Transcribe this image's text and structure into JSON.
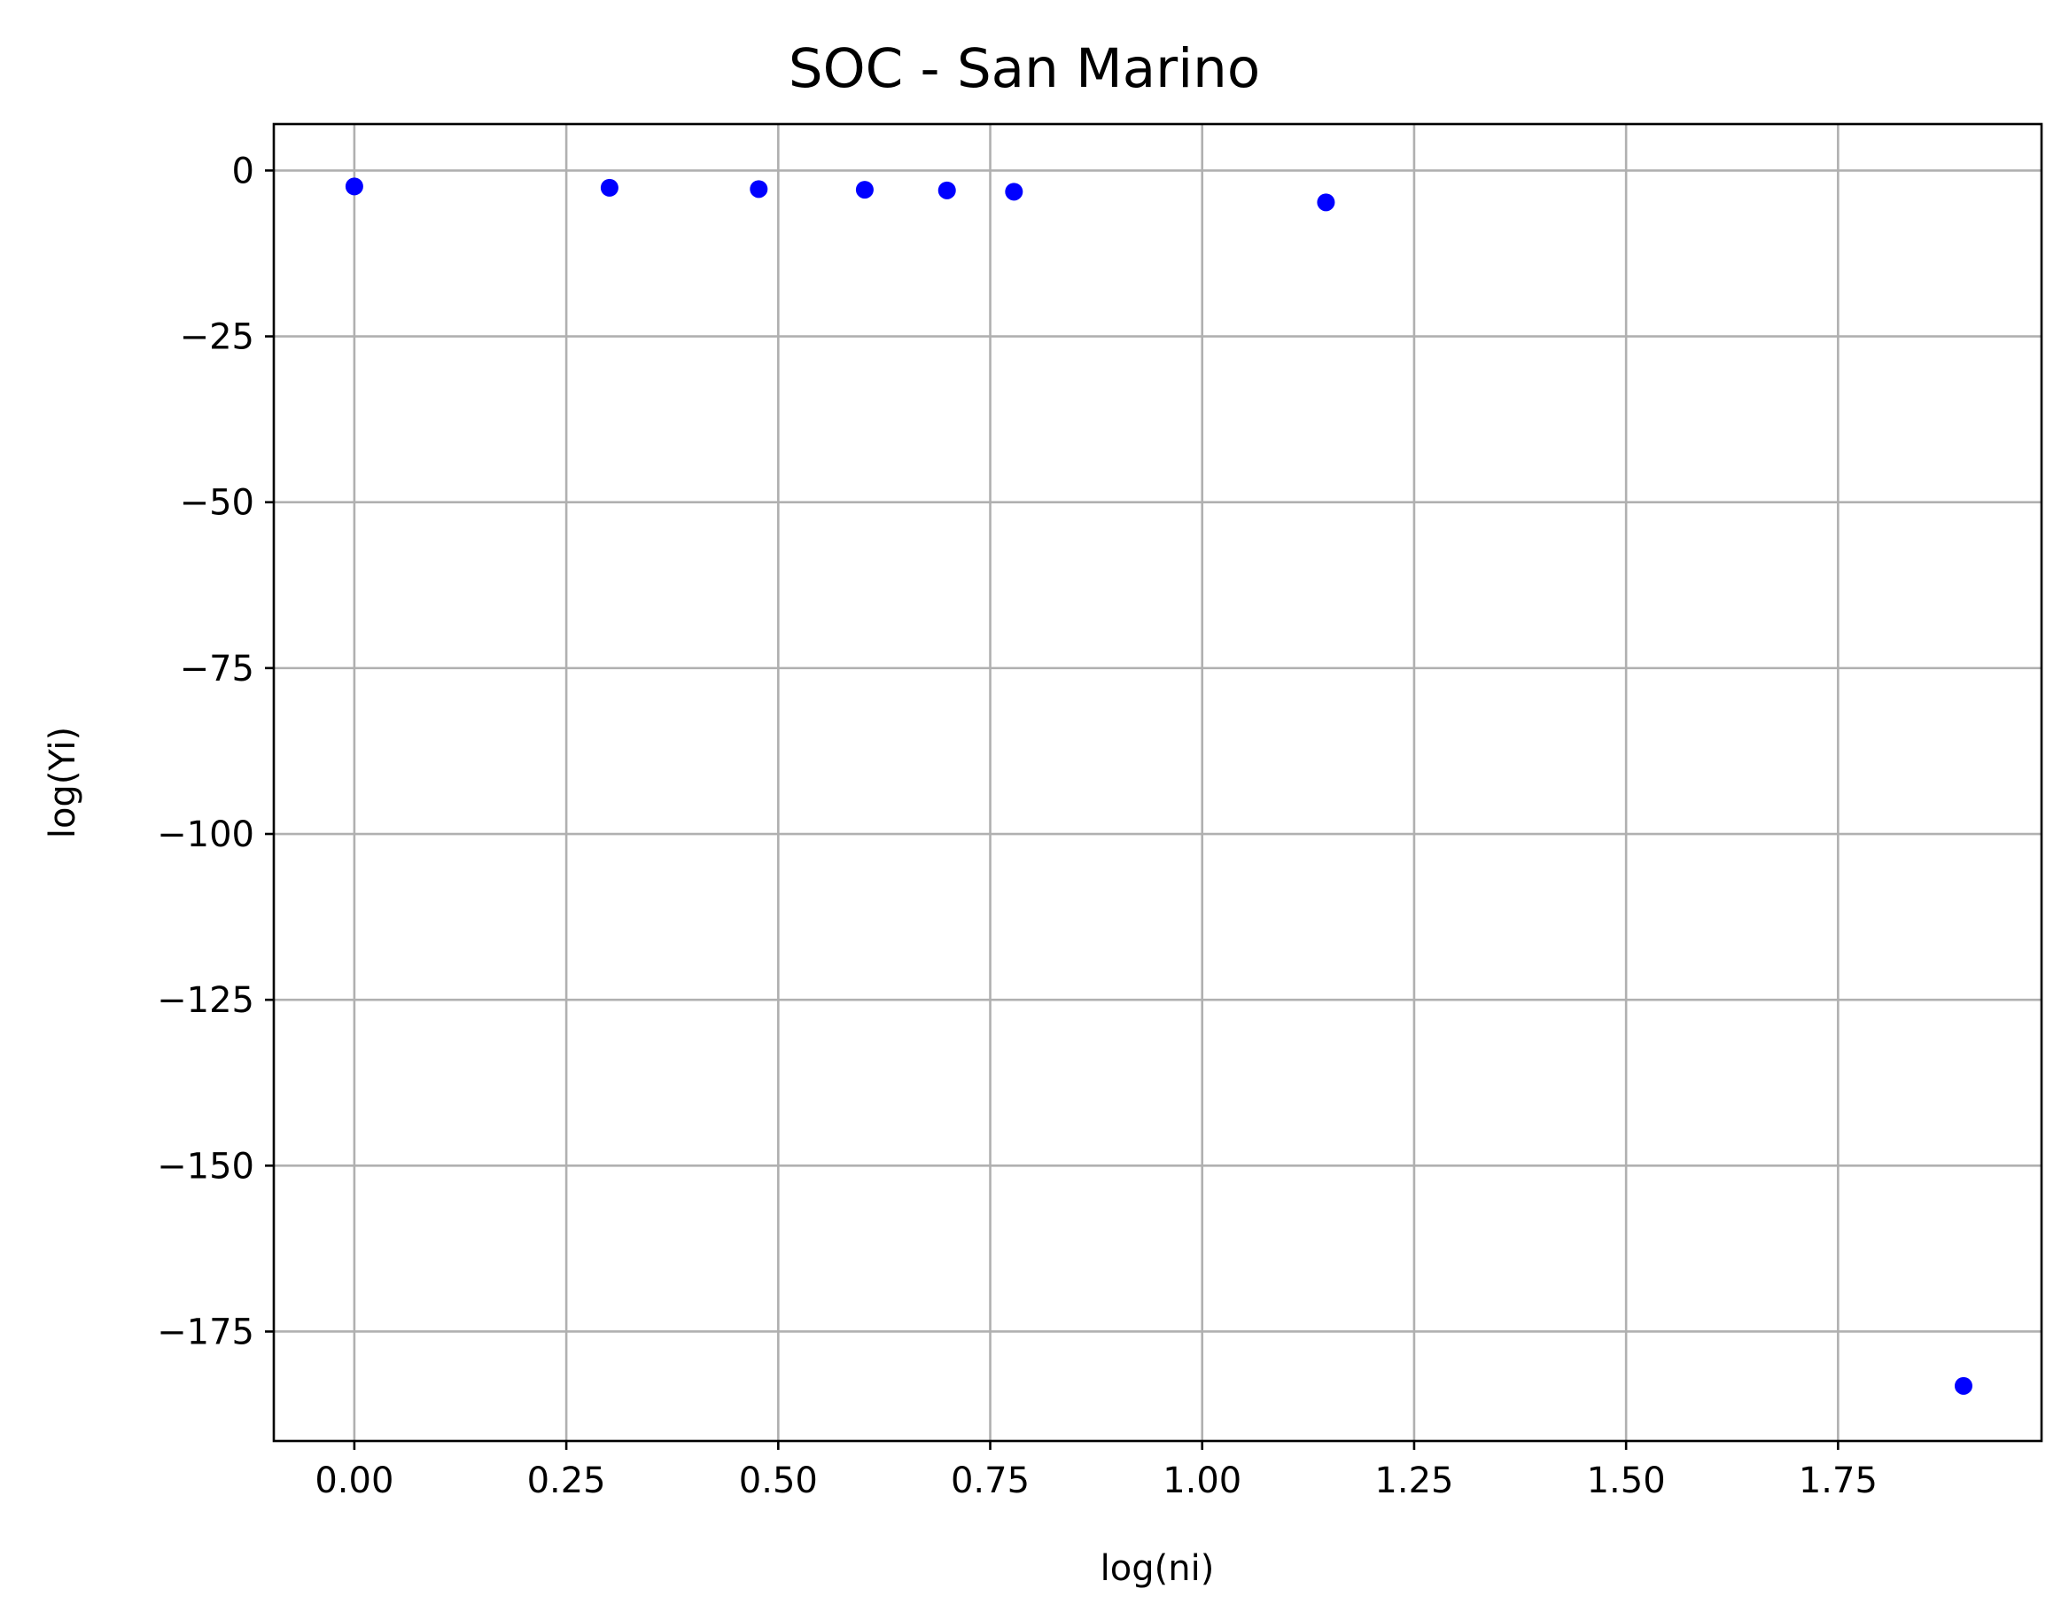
{
  "chart_data": {
    "type": "scatter",
    "title": "SOC - San Marino",
    "xlabel": "log(ni)",
    "ylabel": "log(Yi)",
    "xlim": [
      -0.095,
      1.99
    ],
    "ylim": [
      -191.5,
      7
    ],
    "xticks": [
      0.0,
      0.25,
      0.5,
      0.75,
      1.0,
      1.25,
      1.5,
      1.75
    ],
    "xtick_labels": [
      "0.00",
      "0.25",
      "0.50",
      "0.75",
      "1.00",
      "1.25",
      "1.50",
      "1.75"
    ],
    "yticks": [
      0,
      -25,
      -50,
      -75,
      -100,
      -125,
      -150,
      -175
    ],
    "ytick_labels": [
      "0",
      "−25",
      "−50",
      "−75",
      "−100",
      "−125",
      "−150",
      "−175"
    ],
    "grid": true,
    "marker_color": "#0000ff",
    "series": [
      {
        "x": [
          0.0,
          0.301,
          0.477,
          0.602,
          0.699,
          0.778,
          1.146,
          1.898
        ],
        "y": [
          -2.4,
          -2.6,
          -2.8,
          -2.9,
          -3.0,
          -3.2,
          -4.8,
          -183.2
        ]
      }
    ]
  }
}
